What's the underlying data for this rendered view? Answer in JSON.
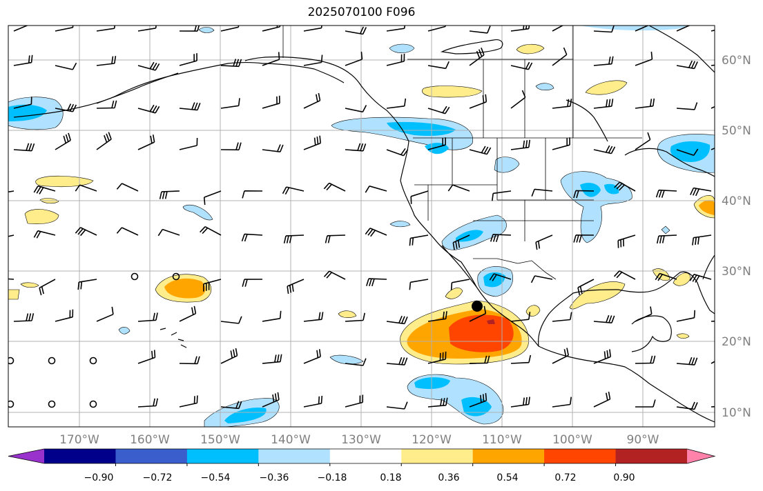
{
  "map": {
    "title": "2025070100 F096",
    "lat_labels": [
      "60°N",
      "50°N",
      "40°N",
      "30°N",
      "20°N",
      "10°N"
    ],
    "lon_labels": [
      "170°W",
      "160°W",
      "150°W",
      "140°W",
      "130°W",
      "120°W",
      "110°W",
      "100°W",
      "90°W"
    ],
    "marker": {
      "label": "point",
      "lon": -113.4,
      "lat": 25.5
    }
  },
  "colorbar": {
    "ticks": [
      "−0.90",
      "−0.72",
      "−0.54",
      "−0.36",
      "−0.18",
      "0.18",
      "0.36",
      "0.54",
      "0.72",
      "0.90"
    ],
    "colors": [
      "#9932cc",
      "#00008b",
      "#3a5fcd",
      "#00bfff",
      "#b0e2ff",
      "#ffffff",
      "#ffec8b",
      "#ffa500",
      "#ff4500",
      "#b22222",
      "#ff82ab"
    ]
  },
  "colors": {
    "land_outline": "#000000",
    "grid": "#b0b0b0",
    "axis_label": "#7f7f7f"
  }
}
